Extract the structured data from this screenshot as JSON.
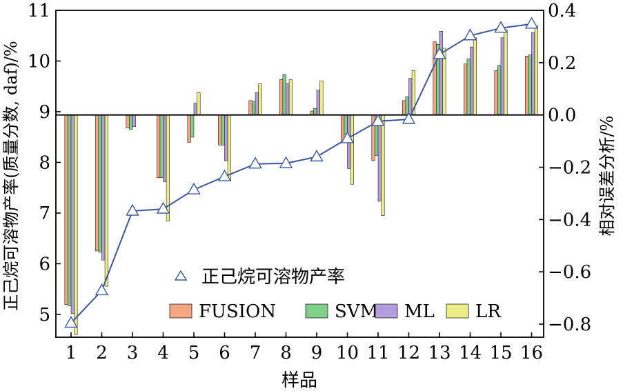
{
  "chart_data": {
    "type": "bar",
    "xlabel": "样品",
    "ylabel_left": "正己烷可溶物产率(质量分数, daf)/%",
    "ylabel_right": "相对误差分析/%",
    "categories": [
      "1",
      "2",
      "3",
      "4",
      "5",
      "6",
      "7",
      "8",
      "9",
      "10",
      "11",
      "12",
      "13",
      "14",
      "15",
      "16"
    ],
    "y_left_lim": [
      4.55,
      11
    ],
    "y_left_ticks": [
      {
        "v": 5,
        "label": "5"
      },
      {
        "v": 6,
        "label": "6"
      },
      {
        "v": 7,
        "label": "7"
      },
      {
        "v": 8,
        "label": "8"
      },
      {
        "v": 9,
        "label": "9"
      },
      {
        "v": 10,
        "label": "10"
      },
      {
        "v": 11,
        "label": "11"
      }
    ],
    "y_right_lim": [
      -0.85,
      0.4
    ],
    "y_right_ticks": [
      {
        "v": -0.8,
        "label": "−0.8"
      },
      {
        "v": -0.6,
        "label": "−0.6"
      },
      {
        "v": -0.4,
        "label": "−0.4"
      },
      {
        "v": -0.2,
        "label": "−0.2"
      },
      {
        "v": 0,
        "label": "0.0"
      },
      {
        "v": 0.2,
        "label": "0.2"
      },
      {
        "v": 0.4,
        "label": "0.4"
      }
    ],
    "line_series": {
      "name": "正己烷可溶物产率",
      "axis": "left",
      "color": "#3a56a0",
      "values": [
        4.83,
        5.47,
        7.04,
        7.08,
        7.46,
        7.72,
        7.97,
        7.98,
        8.11,
        8.47,
        8.81,
        8.85,
        10.13,
        10.5,
        10.65,
        10.73
      ]
    },
    "bar_series": [
      {
        "name": "FUSION",
        "axis": "right",
        "color": "#f4a582",
        "values": [
          -0.725,
          -0.52,
          -0.05,
          -0.24,
          -0.105,
          -0.115,
          0.055,
          0.135,
          0.015,
          -0.1,
          -0.175,
          0.055,
          0.28,
          0.195,
          0.17,
          0.225
        ]
      },
      {
        "name": "SVM",
        "axis": "right",
        "color": "#7fcf8a",
        "values": [
          -0.73,
          -0.525,
          -0.055,
          -0.24,
          -0.085,
          -0.115,
          0.05,
          0.155,
          0.025,
          -0.075,
          -0.155,
          0.07,
          0.27,
          0.215,
          0.19,
          0.23
        ]
      },
      {
        "name": "ML",
        "axis": "right",
        "color": "#b39ddb",
        "values": [
          -0.76,
          -0.555,
          -0.045,
          -0.255,
          0.045,
          -0.175,
          0.085,
          0.12,
          0.095,
          -0.205,
          -0.33,
          0.14,
          0.32,
          0.26,
          0.295,
          0.315
        ]
      },
      {
        "name": "LR",
        "axis": "right",
        "color": "#eeee88",
        "values": [
          -0.84,
          -0.655,
          0,
          -0.405,
          0.085,
          -0.25,
          0.12,
          0.135,
          0.13,
          -0.265,
          -0.385,
          0.17,
          0.255,
          0.295,
          0.325,
          0.34
        ]
      }
    ],
    "legend": {
      "placement": "bottom-left inside plot"
    }
  }
}
